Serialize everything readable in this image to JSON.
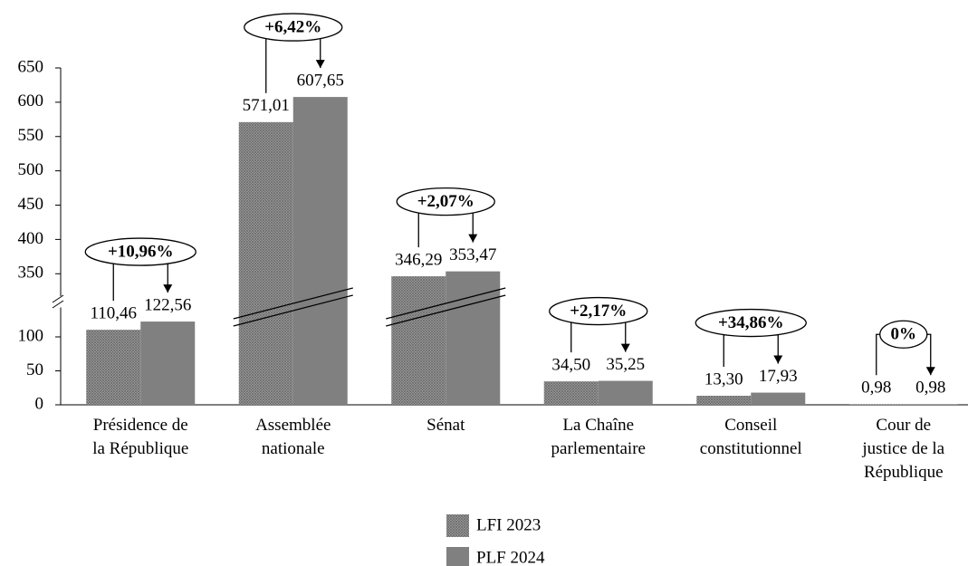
{
  "chart_data": {
    "type": "bar",
    "categories": [
      "Présidence de\nla République",
      "Assemblée\nnationale",
      "Sénat",
      "La Chaîne\nparlementaire",
      "Conseil\nconstitutionnel",
      "Cour de\njustice de la\nRépublique"
    ],
    "series": [
      {
        "name": "LFI 2023",
        "color": "#8c8c8c",
        "pattern": "crosshatch",
        "values": [
          110.46,
          571.01,
          346.29,
          34.5,
          13.3,
          0.98
        ],
        "value_labels": [
          "110,46",
          "571,01",
          "346,29",
          "34,50",
          "13,30",
          "0,98"
        ]
      },
      {
        "name": "PLF 2024",
        "color": "#808080",
        "values": [
          122.56,
          607.65,
          353.47,
          35.25,
          17.93,
          0.98
        ],
        "value_labels": [
          "122,56",
          "607,65",
          "353,47",
          "35,25",
          "17,93",
          "0,98"
        ]
      }
    ],
    "annotations": [
      "+10,96%",
      "+6,42%",
      "+2,07%",
      "+2,17%",
      "+34,86%",
      "0%"
    ],
    "ylim": [
      0,
      650
    ],
    "ybreak": [
      130,
      320
    ],
    "yticks": [
      0,
      50,
      100,
      350,
      400,
      450,
      500,
      550,
      600,
      650
    ],
    "legend": "bottom"
  }
}
